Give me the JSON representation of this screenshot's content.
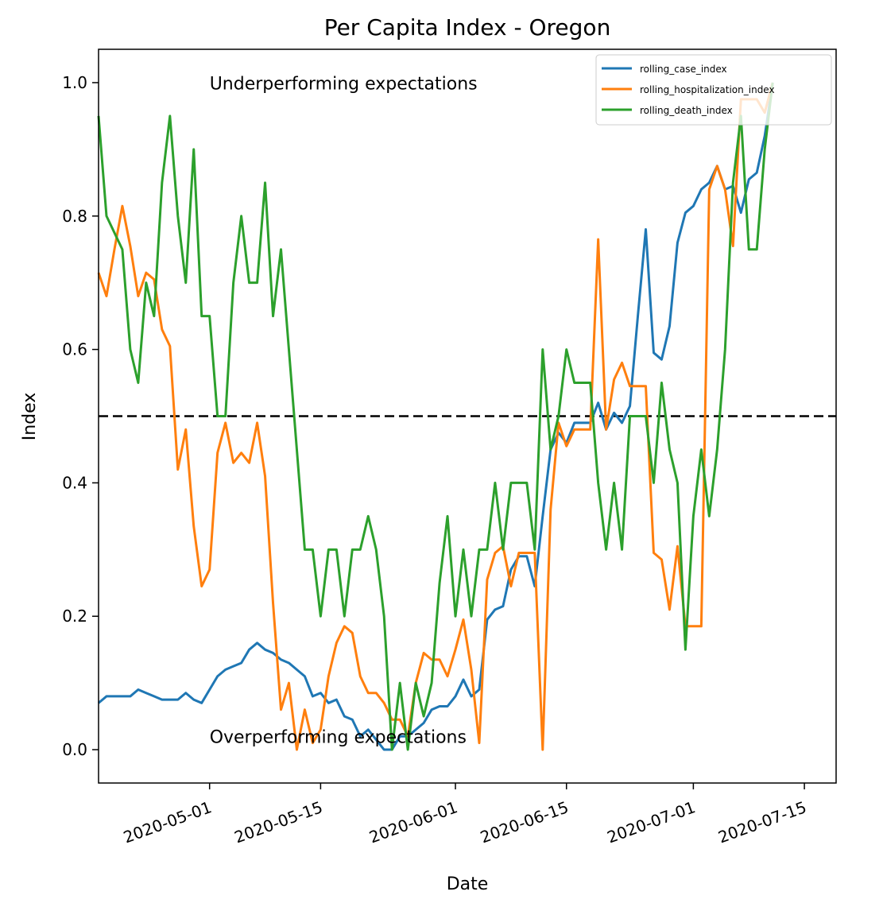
{
  "chart_data": {
    "type": "line",
    "title": "Per Capita Index - Oregon",
    "xlabel": "Date",
    "ylabel": "Index",
    "xlim": [
      "2020-04-17",
      "2020-07-19"
    ],
    "ylim": [
      -0.05,
      1.05
    ],
    "x_ticks": [
      "2020-05-01",
      "2020-05-15",
      "2020-06-01",
      "2020-06-15",
      "2020-07-01",
      "2020-07-15"
    ],
    "y_ticks": [
      0.0,
      0.2,
      0.4,
      0.6,
      0.8,
      1.0
    ],
    "y_tick_labels": [
      "0.0",
      "0.2",
      "0.4",
      "0.6",
      "0.8",
      "1.0"
    ],
    "grid": false,
    "legend_position": "top-right",
    "reference_line": {
      "y": 0.5,
      "style": "dashed",
      "color": "#000000"
    },
    "annotations": [
      {
        "text": "Underperforming expectations",
        "x": "2020-05-01",
        "y": 0.99
      },
      {
        "text": "Overperforming expectations",
        "x": "2020-05-01",
        "y": 0.01
      }
    ],
    "x_start": "2020-04-17",
    "series": [
      {
        "name": "rolling_case_index",
        "color": "#1f77b4",
        "values": [
          0.07,
          0.08,
          0.08,
          0.08,
          0.08,
          0.09,
          0.085,
          0.08,
          0.075,
          0.075,
          0.075,
          0.085,
          0.075,
          0.07,
          0.09,
          0.11,
          0.12,
          0.125,
          0.13,
          0.15,
          0.16,
          0.15,
          0.145,
          0.135,
          0.13,
          0.12,
          0.11,
          0.08,
          0.085,
          0.07,
          0.075,
          0.05,
          0.045,
          0.02,
          0.03,
          0.015,
          0.0,
          0.0,
          0.02,
          0.02,
          0.03,
          0.04,
          0.06,
          0.065,
          0.065,
          0.08,
          0.105,
          0.08,
          0.09,
          0.195,
          0.21,
          0.215,
          0.27,
          0.29,
          0.29,
          0.245,
          0.35,
          0.45,
          0.475,
          0.46,
          0.49,
          0.49,
          0.49,
          0.52,
          0.48,
          0.505,
          0.49,
          0.515,
          0.65,
          0.78,
          0.595,
          0.585,
          0.635,
          0.76,
          0.805,
          0.815,
          0.84,
          0.85,
          0.875,
          0.84,
          0.845,
          0.805,
          0.855,
          0.865,
          0.92,
          1.0
        ]
      },
      {
        "name": "rolling_hospitalization_index",
        "color": "#ff7f0e",
        "values": [
          0.715,
          0.68,
          0.75,
          0.815,
          0.755,
          0.68,
          0.715,
          0.705,
          0.63,
          0.605,
          0.42,
          0.48,
          0.335,
          0.245,
          0.27,
          0.445,
          0.49,
          0.43,
          0.445,
          0.43,
          0.49,
          0.41,
          0.22,
          0.06,
          0.1,
          0.0,
          0.06,
          0.01,
          0.03,
          0.11,
          0.16,
          0.185,
          0.175,
          0.11,
          0.085,
          0.085,
          0.07,
          0.045,
          0.045,
          0.02,
          0.1,
          0.145,
          0.135,
          0.135,
          0.11,
          0.15,
          0.195,
          0.12,
          0.01,
          0.255,
          0.295,
          0.305,
          0.245,
          0.295,
          0.295,
          0.295,
          0.0,
          0.36,
          0.49,
          0.455,
          0.48,
          0.48,
          0.48,
          0.765,
          0.48,
          0.555,
          0.58,
          0.545,
          0.545,
          0.545,
          0.295,
          0.285,
          0.21,
          0.305,
          0.185,
          0.185,
          0.185,
          0.84,
          0.875,
          0.84,
          0.755,
          0.975,
          0.975,
          0.975,
          0.955,
          1.0
        ]
      },
      {
        "name": "rolling_death_index",
        "color": "#2ca02c",
        "values": [
          0.95,
          0.8,
          0.775,
          0.75,
          0.6,
          0.55,
          0.7,
          0.65,
          0.85,
          0.95,
          0.8,
          0.7,
          0.9,
          0.65,
          0.65,
          0.5,
          0.5,
          0.7,
          0.8,
          0.7,
          0.7,
          0.85,
          0.65,
          0.75,
          0.6,
          0.45,
          0.3,
          0.3,
          0.2,
          0.3,
          0.3,
          0.2,
          0.3,
          0.3,
          0.35,
          0.3,
          0.2,
          0.0,
          0.1,
          0.0,
          0.1,
          0.05,
          0.1,
          0.25,
          0.35,
          0.2,
          0.3,
          0.2,
          0.3,
          0.3,
          0.4,
          0.3,
          0.4,
          0.4,
          0.4,
          0.3,
          0.6,
          0.45,
          0.5,
          0.6,
          0.55,
          0.55,
          0.55,
          0.4,
          0.3,
          0.4,
          0.3,
          0.5,
          0.5,
          0.5,
          0.4,
          0.55,
          0.45,
          0.4,
          0.15,
          0.35,
          0.45,
          0.35,
          0.45,
          0.6,
          0.85,
          0.95,
          0.75,
          0.75,
          0.9,
          1.0
        ]
      }
    ]
  }
}
